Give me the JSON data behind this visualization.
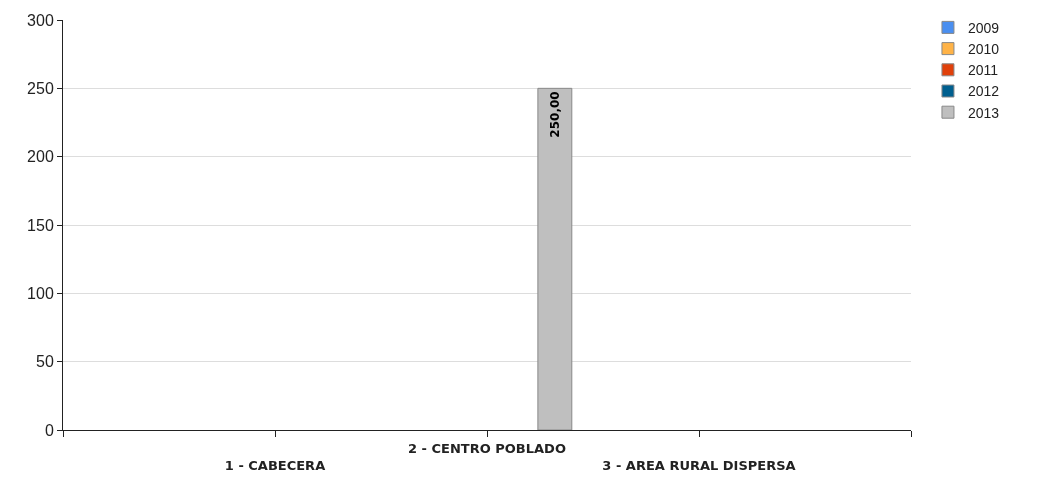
{
  "chart_data": {
    "type": "bar",
    "categories": [
      "1 - CABECERA",
      "2 - CENTRO POBLADO",
      "3 - AREA RURAL DISPERSA"
    ],
    "series": [
      {
        "name": "2009",
        "color": "#4a8ff0",
        "values": [
          null,
          null,
          null
        ]
      },
      {
        "name": "2010",
        "color": "#ffb347",
        "values": [
          null,
          null,
          null
        ]
      },
      {
        "name": "2011",
        "color": "#e0400a",
        "values": [
          null,
          null,
          null
        ]
      },
      {
        "name": "2012",
        "color": "#005f8f",
        "values": [
          null,
          null,
          null
        ]
      },
      {
        "name": "2013",
        "color": "#bfbfbf",
        "values": [
          null,
          250,
          null
        ],
        "value_labels": [
          null,
          "250,00",
          null
        ]
      }
    ],
    "ylim": [
      0,
      300
    ],
    "yticks": [
      0,
      50,
      100,
      150,
      200,
      250,
      300
    ],
    "grid": "y",
    "legend": "top right"
  }
}
